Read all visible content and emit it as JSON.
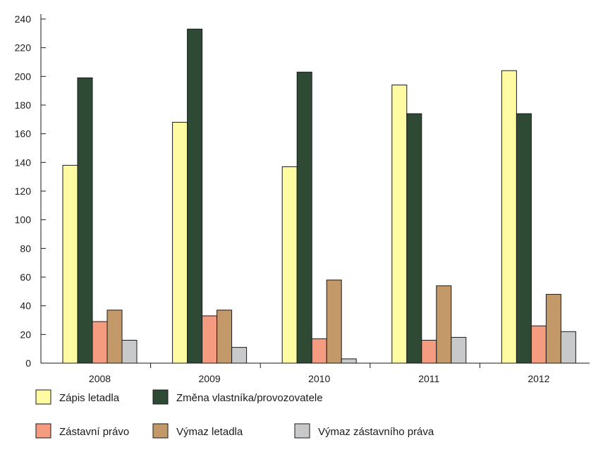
{
  "chart_data": {
    "type": "bar",
    "title": "",
    "xlabel": "",
    "ylabel": "",
    "ylim": [
      0,
      240
    ],
    "yticks": [
      0,
      20,
      40,
      60,
      80,
      100,
      120,
      140,
      160,
      180,
      200,
      220,
      240
    ],
    "categories": [
      "2008",
      "2009",
      "2010",
      "2011",
      "2012"
    ],
    "series": [
      {
        "name": "Zápis letadla",
        "color": "#FFFBA3",
        "values": [
          138,
          168,
          137,
          194,
          204
        ]
      },
      {
        "name": "Změna vlastníka/provozovatele",
        "color": "#2E4A35",
        "values": [
          199,
          233,
          203,
          174,
          174
        ]
      },
      {
        "name": "Zástavní právo",
        "color": "#F49B80",
        "values": [
          29,
          33,
          17,
          16,
          26
        ]
      },
      {
        "name": "Výmaz letadla",
        "color": "#C4996A",
        "values": [
          37,
          37,
          58,
          54,
          48
        ]
      },
      {
        "name": "Výmaz zástavního práva",
        "color": "#C8C9CB",
        "values": [
          16,
          11,
          3,
          18,
          22
        ]
      }
    ],
    "grid": false,
    "legend_position": "bottom"
  }
}
